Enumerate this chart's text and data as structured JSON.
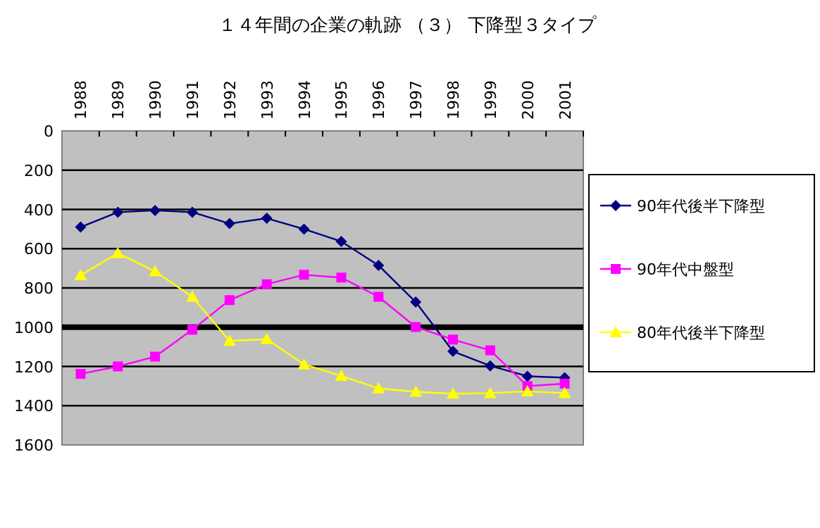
{
  "chart_data": {
    "type": "line",
    "title": "１４年間の企業の軌跡 （３） 下降型３タイプ",
    "categories": [
      "1988",
      "1989",
      "1990",
      "1991",
      "1992",
      "1993",
      "1994",
      "1995",
      "1996",
      "1997",
      "1998",
      "1999",
      "2000",
      "2001"
    ],
    "series": [
      {
        "name": "90年代後半下降型",
        "color": "#000080",
        "marker": "diamond",
        "values": [
          490,
          414,
          405,
          414,
          472,
          445,
          500,
          563,
          685,
          872,
          1123,
          1197,
          1250,
          1257
        ]
      },
      {
        "name": "90年代中盤型",
        "color": "#ff00ff",
        "marker": "square",
        "values": [
          1238,
          1200,
          1150,
          1013,
          862,
          781,
          733,
          747,
          845,
          999,
          1063,
          1118,
          1300,
          1288
        ]
      },
      {
        "name": "80年代後半下降型",
        "color": "#ffff00",
        "marker": "triangle",
        "values": [
          735,
          623,
          716,
          845,
          1070,
          1061,
          1190,
          1248,
          1312,
          1329,
          1339,
          1336,
          1327,
          1336
        ]
      }
    ],
    "ylim": [
      1600,
      0
    ],
    "yticks": [
      0,
      200,
      400,
      600,
      800,
      1000,
      1200,
      1400,
      1600
    ],
    "grid": "y",
    "legend": "right",
    "ref_lines": [
      {
        "axis": "y",
        "value": 1000,
        "color": "#000000"
      }
    ]
  }
}
